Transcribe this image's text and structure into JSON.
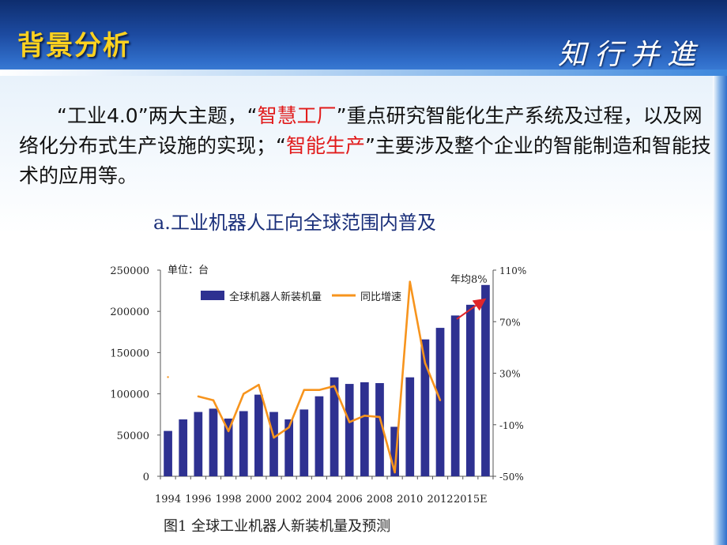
{
  "header": {
    "title": "背景分析",
    "motto": "知行并進"
  },
  "paragraph": {
    "p1": "“工业4.0”两大主题，“",
    "h1": "智慧工厂",
    "p2": "”重点研究智能化生产系统及过程，以及网络化分布式生产设施的实现；“",
    "h2": "智能生产",
    "p3": "”主要涉及整个企业的智能制造和智能技术的应用等。"
  },
  "subtitle": "a.工业机器人正向全球范围内普及",
  "caption": "图1  全球工业机器人新装机量及预测",
  "chart_data": {
    "type": "bar",
    "unit_label": "单位：台",
    "annotation": "年均8%",
    "x_tick_labels": [
      "1994",
      "1996",
      "1998",
      "2000",
      "2002",
      "2004",
      "2006",
      "2008",
      "2010",
      "2012",
      "2015E"
    ],
    "y_left_ticks": [
      "0",
      "50000",
      "100000",
      "150000",
      "200000",
      "250000"
    ],
    "y_right_ticks": [
      "-50%",
      "-10%",
      "30%",
      "70%",
      "110%"
    ],
    "ylim_left": [
      0,
      250000
    ],
    "ylim_right": [
      -50,
      110
    ],
    "categories": [
      "1994",
      "1995",
      "1996",
      "1997",
      "1998",
      "1999",
      "2000",
      "2001",
      "2002",
      "2003",
      "2004",
      "2005",
      "2006",
      "2007",
      "2008",
      "2009",
      "2010",
      "2011",
      "2012",
      "2013",
      "2014",
      "2015E"
    ],
    "series": [
      {
        "name": "全球机器人新装机量",
        "kind": "bar",
        "color": "#2e3191",
        "values": [
          55000,
          69000,
          78000,
          82000,
          70000,
          79000,
          99000,
          78000,
          69000,
          81000,
          97000,
          120000,
          112000,
          114000,
          113000,
          60000,
          120000,
          166000,
          180000,
          195000,
          208000,
          232000
        ]
      },
      {
        "name": "同比增速",
        "kind": "line",
        "color": "#f7941d",
        "values": [
          27,
          null,
          12,
          9,
          -15,
          14,
          21,
          -20,
          -12,
          17,
          17,
          20,
          -8,
          -3,
          -4,
          -47,
          101,
          38,
          9,
          null,
          null,
          null
        ]
      }
    ]
  }
}
